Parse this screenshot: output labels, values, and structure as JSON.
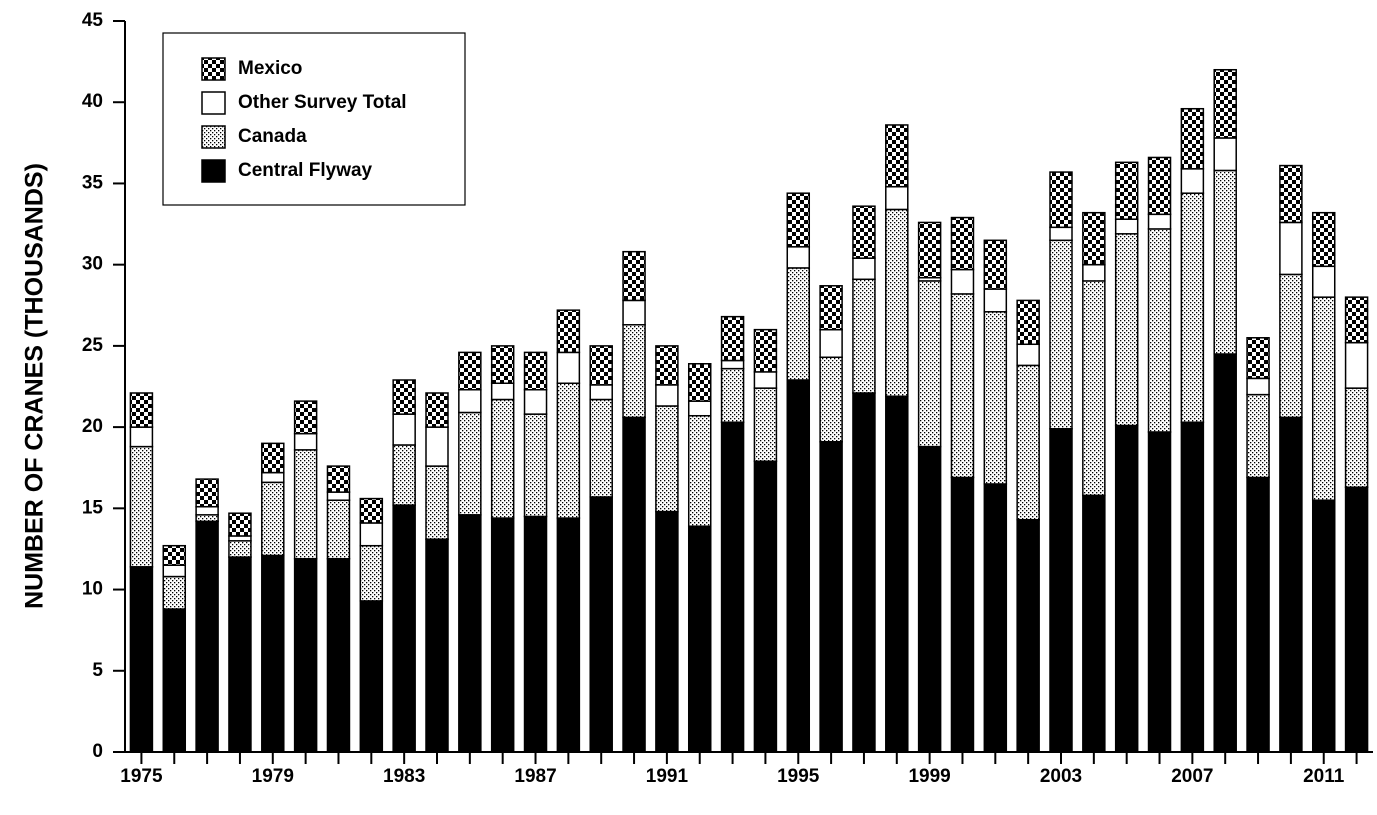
{
  "chart_data": {
    "type": "stacked_bar",
    "y_label": "NUMBER OF CRANES (THOUSANDS)",
    "categories": [
      "1975",
      null,
      null,
      null,
      "1979",
      null,
      null,
      null,
      "1983",
      null,
      null,
      null,
      "1987",
      null,
      null,
      null,
      "1991",
      null,
      null,
      null,
      "1995",
      null,
      null,
      null,
      "1999",
      null,
      null,
      null,
      "2003",
      null,
      null,
      null,
      "2007",
      null,
      null,
      null,
      "2011",
      null
    ],
    "series": [
      {
        "name": "Central Flyway",
        "color": "#000000",
        "values": [
          11.4,
          8.8,
          14.2,
          12.0,
          12.1,
          11.9,
          11.9,
          9.3,
          15.2,
          13.1,
          14.6,
          14.4,
          14.5,
          14.4,
          15.7,
          20.6,
          14.8,
          13.9,
          20.3,
          17.9,
          22.9,
          19.1,
          22.1,
          21.9,
          18.8,
          16.9,
          16.5,
          14.3,
          19.9,
          15.8,
          20.1,
          19.7,
          20.3,
          24.5,
          16.9,
          20.6,
          15.5,
          16.3
        ]
      },
      {
        "name": "Canada",
        "color": "#000000",
        "pattern": "dots",
        "values": [
          7.4,
          2.0,
          0.4,
          1.0,
          4.5,
          6.7,
          3.6,
          3.4,
          3.7,
          4.5,
          6.3,
          7.3,
          6.3,
          8.3,
          6.0,
          5.7,
          6.5,
          6.8,
          3.3,
          4.5,
          6.9,
          5.2,
          7.0,
          11.5,
          10.2,
          11.3,
          10.6,
          9.5,
          11.6,
          13.2,
          11.8,
          12.5,
          14.1,
          11.3,
          5.1,
          8.8,
          12.5,
          6.1
        ]
      },
      {
        "name": "Other Survey Total",
        "color": "#ffffff",
        "values": [
          1.2,
          0.7,
          0.5,
          0.3,
          0.6,
          1.0,
          0.5,
          1.4,
          1.9,
          2.4,
          1.4,
          1.0,
          1.5,
          1.9,
          0.9,
          1.5,
          1.3,
          0.9,
          0.5,
          1.0,
          1.3,
          1.7,
          1.3,
          1.4,
          0.2,
          1.5,
          1.4,
          1.3,
          0.8,
          1.0,
          0.9,
          0.9,
          1.5,
          2.0,
          1.0,
          3.2,
          1.9,
          2.8
        ]
      },
      {
        "name": "Mexico",
        "color": "#000000",
        "pattern": "checker",
        "values": [
          2.1,
          1.2,
          1.7,
          1.4,
          1.8,
          2.0,
          1.6,
          1.5,
          2.1,
          2.1,
          2.3,
          2.3,
          2.3,
          2.6,
          2.4,
          3.0,
          2.4,
          2.3,
          2.7,
          2.6,
          3.3,
          2.7,
          3.2,
          3.8,
          3.4,
          3.2,
          3.0,
          2.7,
          3.4,
          3.2,
          3.5,
          3.5,
          3.7,
          4.2,
          2.5,
          3.5,
          3.3,
          2.8
        ]
      }
    ],
    "ylim": [
      0,
      45
    ],
    "yticks": [
      0,
      5,
      10,
      15,
      20,
      25,
      30,
      35,
      40,
      45
    ],
    "legend": "upper left"
  }
}
